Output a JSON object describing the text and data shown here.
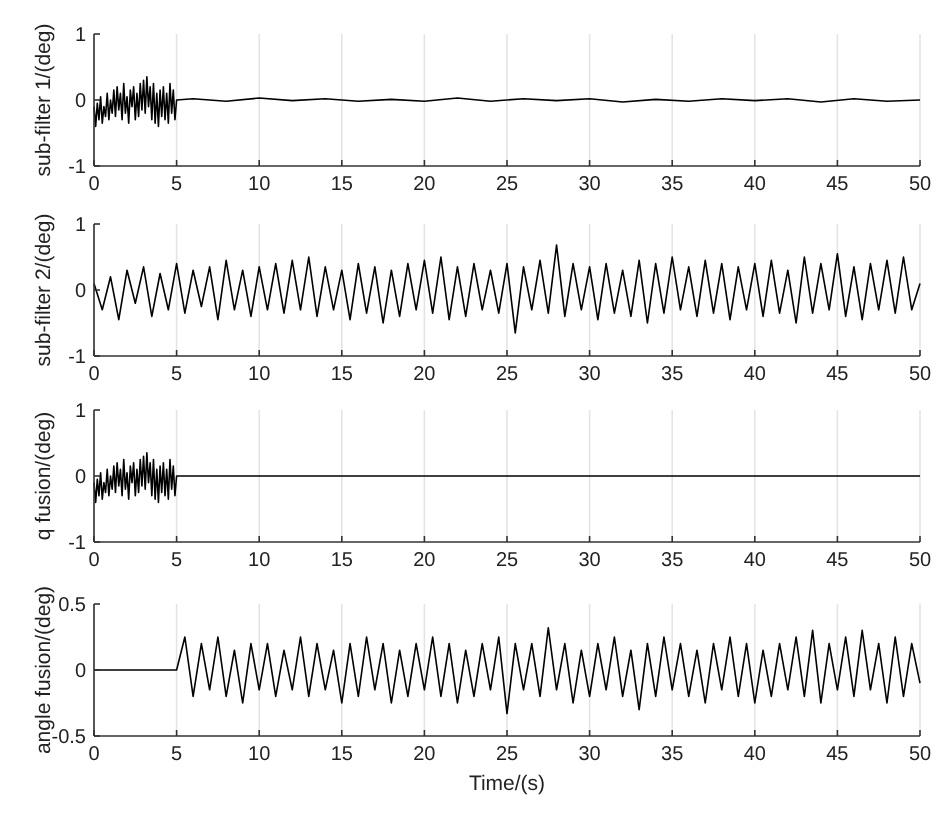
{
  "chart_data": [
    {
      "type": "line",
      "ylabel": "sub-filter 1/(deg)",
      "xlim": [
        0,
        50
      ],
      "xticks": [
        0,
        5,
        10,
        15,
        20,
        25,
        30,
        35,
        40,
        45,
        50
      ],
      "ylim": [
        -1,
        1
      ],
      "yticks": [
        -1,
        0,
        1
      ],
      "grid": "x",
      "x": [
        0,
        0.1,
        0.2,
        0.3,
        0.4,
        0.5,
        0.6,
        0.7,
        0.8,
        0.9,
        1,
        1.1,
        1.2,
        1.3,
        1.4,
        1.5,
        1.6,
        1.7,
        1.8,
        1.9,
        2,
        2.1,
        2.2,
        2.3,
        2.4,
        2.5,
        2.6,
        2.7,
        2.8,
        2.9,
        3,
        3.1,
        3.2,
        3.3,
        3.4,
        3.5,
        3.6,
        3.7,
        3.8,
        3.9,
        4,
        4.1,
        4.2,
        4.3,
        4.4,
        4.5,
        4.6,
        4.7,
        4.8,
        4.9,
        5,
        6,
        8,
        10,
        12,
        14,
        16,
        18,
        20,
        22,
        24,
        26,
        28,
        30,
        32,
        34,
        36,
        38,
        40,
        42,
        44,
        46,
        48,
        50
      ],
      "series": [
        {
          "color": "#000000",
          "values": [
            -0.1,
            -0.4,
            -0.05,
            -0.3,
            0.05,
            -0.35,
            -0.1,
            -0.25,
            0.1,
            -0.3,
            0.0,
            -0.2,
            0.15,
            -0.25,
            0.2,
            -0.15,
            0.1,
            -0.3,
            0.25,
            -0.2,
            0.05,
            -0.35,
            0.15,
            -0.1,
            0.2,
            -0.3,
            0.1,
            -0.25,
            0.25,
            -0.15,
            0.3,
            -0.2,
            0.35,
            -0.1,
            0.2,
            -0.3,
            0.25,
            -0.35,
            0.1,
            -0.4,
            0.15,
            -0.25,
            0.2,
            -0.3,
            0.1,
            -0.35,
            0.25,
            -0.2,
            0.15,
            -0.3,
            0.0,
            0.02,
            -0.02,
            0.03,
            -0.01,
            0.02,
            -0.02,
            0.01,
            -0.02,
            0.03,
            -0.02,
            0.02,
            -0.01,
            0.02,
            -0.03,
            0.01,
            -0.02,
            0.02,
            -0.01,
            0.02,
            -0.03,
            0.02,
            -0.02,
            0.0
          ]
        }
      ]
    },
    {
      "type": "line",
      "ylabel": "sub-filter 2/(deg)",
      "xlim": [
        0,
        50
      ],
      "xticks": [
        0,
        5,
        10,
        15,
        20,
        25,
        30,
        35,
        40,
        45,
        50
      ],
      "ylim": [
        -1,
        1
      ],
      "yticks": [
        -1,
        0,
        1
      ],
      "grid": "x",
      "x": [
        0,
        0.5,
        1,
        1.5,
        2,
        2.5,
        3,
        3.5,
        4,
        4.5,
        5,
        5.5,
        6,
        6.5,
        7,
        7.5,
        8,
        8.5,
        9,
        9.5,
        10,
        10.5,
        11,
        11.5,
        12,
        12.5,
        13,
        13.5,
        14,
        14.5,
        15,
        15.5,
        16,
        16.5,
        17,
        17.5,
        18,
        18.5,
        19,
        19.5,
        20,
        20.5,
        21,
        21.5,
        22,
        22.5,
        23,
        23.5,
        24,
        24.5,
        25,
        25.5,
        26,
        26.5,
        27,
        27.5,
        28,
        28.5,
        29,
        29.5,
        30,
        30.5,
        31,
        31.5,
        32,
        32.5,
        33,
        33.5,
        34,
        34.5,
        35,
        35.5,
        36,
        36.5,
        37,
        37.5,
        38,
        38.5,
        39,
        39.5,
        40,
        40.5,
        41,
        41.5,
        42,
        42.5,
        43,
        43.5,
        44,
        44.5,
        45,
        45.5,
        46,
        46.5,
        47,
        47.5,
        48,
        48.5,
        49,
        49.5,
        50
      ],
      "series": [
        {
          "color": "#000000",
          "values": [
            0.1,
            -0.3,
            0.2,
            -0.45,
            0.3,
            -0.2,
            0.35,
            -0.4,
            0.25,
            -0.3,
            0.4,
            -0.35,
            0.3,
            -0.25,
            0.35,
            -0.45,
            0.45,
            -0.3,
            0.3,
            -0.4,
            0.35,
            -0.3,
            0.4,
            -0.35,
            0.45,
            -0.3,
            0.5,
            -0.4,
            0.35,
            -0.3,
            0.3,
            -0.45,
            0.4,
            -0.35,
            0.35,
            -0.5,
            0.3,
            -0.4,
            0.4,
            -0.3,
            0.45,
            -0.35,
            0.5,
            -0.45,
            0.35,
            -0.4,
            0.4,
            -0.3,
            0.3,
            -0.35,
            0.4,
            -0.65,
            0.35,
            -0.3,
            0.45,
            -0.35,
            0.68,
            -0.4,
            0.4,
            -0.3,
            0.35,
            -0.45,
            0.4,
            -0.35,
            0.3,
            -0.4,
            0.45,
            -0.5,
            0.4,
            -0.35,
            0.5,
            -0.3,
            0.35,
            -0.4,
            0.45,
            -0.35,
            0.4,
            -0.45,
            0.35,
            -0.3,
            0.4,
            -0.4,
            0.45,
            -0.35,
            0.3,
            -0.5,
            0.5,
            -0.35,
            0.4,
            -0.3,
            0.55,
            -0.4,
            0.35,
            -0.45,
            0.4,
            -0.3,
            0.45,
            -0.35,
            0.5,
            -0.3,
            0.1
          ]
        }
      ]
    },
    {
      "type": "line",
      "ylabel": "q fusion/(deg)",
      "xlim": [
        0,
        50
      ],
      "xticks": [
        0,
        5,
        10,
        15,
        20,
        25,
        30,
        35,
        40,
        45,
        50
      ],
      "ylim": [
        -1,
        1
      ],
      "yticks": [
        -1,
        0,
        1
      ],
      "grid": "x",
      "x": [
        0,
        0.1,
        0.2,
        0.3,
        0.4,
        0.5,
        0.6,
        0.7,
        0.8,
        0.9,
        1,
        1.1,
        1.2,
        1.3,
        1.4,
        1.5,
        1.6,
        1.7,
        1.8,
        1.9,
        2,
        2.1,
        2.2,
        2.3,
        2.4,
        2.5,
        2.6,
        2.7,
        2.8,
        2.9,
        3,
        3.1,
        3.2,
        3.3,
        3.4,
        3.5,
        3.6,
        3.7,
        3.8,
        3.9,
        4,
        4.1,
        4.2,
        4.3,
        4.4,
        4.5,
        4.6,
        4.7,
        4.8,
        4.9,
        5,
        50
      ],
      "series": [
        {
          "color": "#000000",
          "values": [
            -0.1,
            -0.4,
            -0.05,
            -0.3,
            0.05,
            -0.35,
            -0.1,
            -0.25,
            0.1,
            -0.3,
            0.0,
            -0.2,
            0.15,
            -0.25,
            0.2,
            -0.15,
            0.1,
            -0.3,
            0.25,
            -0.2,
            0.05,
            -0.35,
            0.15,
            -0.1,
            0.2,
            -0.3,
            0.1,
            -0.25,
            0.25,
            -0.15,
            0.3,
            -0.2,
            0.35,
            -0.1,
            0.2,
            -0.3,
            0.25,
            -0.35,
            0.1,
            -0.4,
            0.15,
            -0.25,
            0.2,
            -0.3,
            0.1,
            -0.35,
            0.25,
            -0.2,
            0.15,
            -0.3,
            0.0,
            0.0
          ]
        }
      ]
    },
    {
      "type": "line",
      "ylabel": "angle fusion/(deg)",
      "xlabel": "Time/(s)",
      "xlim": [
        0,
        50
      ],
      "xticks": [
        0,
        5,
        10,
        15,
        20,
        25,
        30,
        35,
        40,
        45,
        50
      ],
      "ylim": [
        -0.5,
        0.5
      ],
      "yticks": [
        -0.5,
        0,
        0.5
      ],
      "grid": "x",
      "x": [
        0,
        5,
        5.5,
        6,
        6.5,
        7,
        7.5,
        8,
        8.5,
        9,
        9.5,
        10,
        10.5,
        11,
        11.5,
        12,
        12.5,
        13,
        13.5,
        14,
        14.5,
        15,
        15.5,
        16,
        16.5,
        17,
        17.5,
        18,
        18.5,
        19,
        19.5,
        20,
        20.5,
        21,
        21.5,
        22,
        22.5,
        23,
        23.5,
        24,
        24.5,
        25,
        25.5,
        26,
        26.5,
        27,
        27.5,
        28,
        28.5,
        29,
        29.5,
        30,
        30.5,
        31,
        31.5,
        32,
        32.5,
        33,
        33.5,
        34,
        34.5,
        35,
        35.5,
        36,
        36.5,
        37,
        37.5,
        38,
        38.5,
        39,
        39.5,
        40,
        40.5,
        41,
        41.5,
        42,
        42.5,
        43,
        43.5,
        44,
        44.5,
        45,
        45.5,
        46,
        46.5,
        47,
        47.5,
        48,
        48.5,
        49,
        49.5,
        50
      ],
      "series": [
        {
          "color": "#000000",
          "values": [
            0,
            0,
            0.25,
            -0.2,
            0.2,
            -0.15,
            0.25,
            -0.2,
            0.15,
            -0.25,
            0.2,
            -0.15,
            0.2,
            -0.2,
            0.15,
            -0.15,
            0.25,
            -0.2,
            0.2,
            -0.15,
            0.15,
            -0.25,
            0.2,
            -0.2,
            0.25,
            -0.15,
            0.2,
            -0.25,
            0.15,
            -0.2,
            0.2,
            -0.15,
            0.25,
            -0.2,
            0.2,
            -0.25,
            0.15,
            -0.2,
            0.2,
            -0.15,
            0.25,
            -0.33,
            0.2,
            -0.15,
            0.2,
            -0.2,
            0.32,
            -0.15,
            0.2,
            -0.25,
            0.15,
            -0.2,
            0.2,
            -0.15,
            0.25,
            -0.2,
            0.15,
            -0.3,
            0.2,
            -0.2,
            0.25,
            -0.15,
            0.2,
            -0.2,
            0.15,
            -0.25,
            0.2,
            -0.15,
            0.25,
            -0.2,
            0.2,
            -0.25,
            0.15,
            -0.2,
            0.2,
            -0.15,
            0.25,
            -0.2,
            0.3,
            -0.25,
            0.2,
            -0.15,
            0.25,
            -0.2,
            0.3,
            -0.15,
            0.2,
            -0.25,
            0.25,
            -0.2,
            0.2,
            -0.1
          ]
        }
      ]
    }
  ]
}
